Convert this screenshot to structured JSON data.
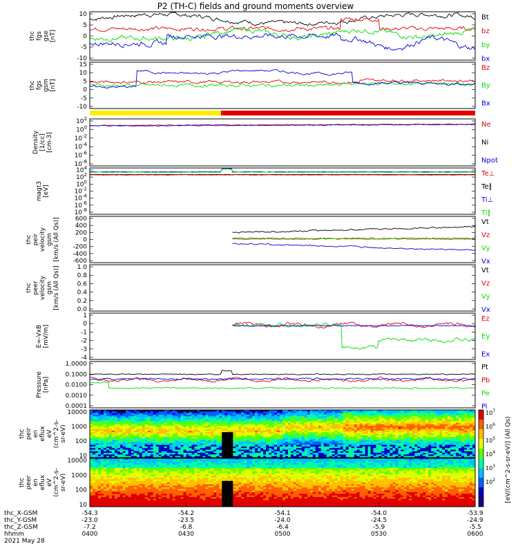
{
  "title": "P2 (TH-C) fields and ground moments overview",
  "colors": {
    "black": "#000000",
    "red": "#e00000",
    "green": "#00dd00",
    "blue": "#0000e0",
    "yellow": "#ffee00"
  },
  "mode_bar": {
    "segments": [
      {
        "start": "04:00",
        "end": "04:30",
        "color": "yellow"
      },
      {
        "start": "04:30",
        "end": "06:00",
        "color": "red"
      }
    ]
  },
  "chart_data": [
    {
      "id": "fgs_gse",
      "type": "line",
      "ylabel": "thc\nfgs\ngse\n[nT]",
      "yticks": [
        "10",
        "5",
        "0",
        "-5",
        "-10"
      ],
      "ylim": [
        -10,
        10
      ],
      "series": [
        {
          "name": "Bt",
          "color": "black"
        },
        {
          "name": "bz",
          "color": "red"
        },
        {
          "name": "by",
          "color": "green"
        },
        {
          "name": "bx",
          "color": "blue"
        }
      ]
    },
    {
      "id": "fgs_gsm",
      "type": "line",
      "ylabel": "thc\nfgs\ngsm\n[nT]",
      "yticks": [
        "15",
        "10",
        "5",
        "0",
        "-5",
        "-10"
      ],
      "ylim": [
        -13,
        15
      ],
      "series": [
        {
          "name": "Bz",
          "color": "red"
        },
        {
          "name": "By",
          "color": "green"
        },
        {
          "name": "Bx",
          "color": "blue"
        }
      ]
    },
    {
      "id": "density",
      "type": "line",
      "ylabel": "Density\n[1/cc]\n[cm-3]",
      "yticks": [
        "10^2",
        "10^0",
        "10^-2",
        "10^-4",
        "10^-6",
        "10^-8"
      ],
      "ylim": [
        -8,
        2
      ],
      "log": true,
      "series": [
        {
          "name": "Ne",
          "color": "red"
        },
        {
          "name": "Ni",
          "color": "black"
        },
        {
          "name": "Npot",
          "color": "blue"
        }
      ]
    },
    {
      "id": "temp",
      "type": "line",
      "ylabel": "magt3\n[eV]",
      "yticks": [
        "10^4",
        "10^2",
        "10^0",
        "10^-2",
        "10^-4",
        "10^-6",
        "10^-8"
      ],
      "ylim": [
        -8,
        4
      ],
      "log": true,
      "series": [
        {
          "name": "Te⊥",
          "color": "red"
        },
        {
          "name": "Te∥",
          "color": "black"
        },
        {
          "name": "Ti⊥",
          "color": "blue"
        },
        {
          "name": "Ti∥",
          "color": "green"
        }
      ]
    },
    {
      "id": "peir_vel",
      "type": "line",
      "ylabel": "thc\npeir\nvelocity\ngsm\n[km/s (All Qs)]",
      "yticks": [
        "600",
        "400",
        "200",
        "0",
        "-200",
        "-400",
        "-600"
      ],
      "ylim": [
        -600,
        600
      ],
      "series": [
        {
          "name": "Vt",
          "color": "black"
        },
        {
          "name": "Vz",
          "color": "red"
        },
        {
          "name": "Vy",
          "color": "green"
        },
        {
          "name": "Vx",
          "color": "blue"
        }
      ]
    },
    {
      "id": "peer_vel",
      "type": "line",
      "ylabel": "thc\npeer\nvelocity\ngsm\n[km/s (All Qs)]",
      "yticks": [
        "1.0",
        "0.8",
        "0.6",
        "0.4",
        "0.2",
        "0.0"
      ],
      "ylim": [
        0,
        1
      ],
      "series": [
        {
          "name": "Vt",
          "color": "black"
        },
        {
          "name": "Vz",
          "color": "red"
        },
        {
          "name": "Vy",
          "color": "green"
        },
        {
          "name": "Vx",
          "color": "blue"
        }
      ]
    },
    {
      "id": "efield",
      "type": "line",
      "ylabel": "E=-VxB\n[mV/m]",
      "yticks": [
        "1",
        "0",
        "-1",
        "-2",
        "-3",
        "-4"
      ],
      "ylim": [
        -4,
        1.5
      ],
      "series": [
        {
          "name": "Ez",
          "color": "red"
        },
        {
          "name": "Ey",
          "color": "green"
        },
        {
          "name": "Ex",
          "color": "blue"
        }
      ]
    },
    {
      "id": "pressure",
      "type": "line",
      "ylabel": "Pressure\n[nPa]",
      "yticks": [
        "1.0000",
        "0.1000",
        "0.0100",
        "0.0010",
        "0.0001"
      ],
      "ylim": [
        -4,
        0
      ],
      "log": true,
      "series": [
        {
          "name": "Pt",
          "color": "black"
        },
        {
          "name": "Pb",
          "color": "red"
        },
        {
          "name": "Pe",
          "color": "green"
        },
        {
          "name": "Pi",
          "color": "blue"
        }
      ]
    },
    {
      "id": "peir_en",
      "type": "heatmap",
      "ylabel": "thc\npeir\nen\neflux\neV\n(cm^2-s-\nsr-eV)",
      "yticks": [
        "10000",
        "1000",
        "100",
        "10"
      ]
    },
    {
      "id": "peer_en",
      "type": "heatmap",
      "ylabel": "thc\npeer\nen\neflux\neV\n(cm^2-s-\nsr-eV)",
      "yticks": [
        "10000",
        "1000",
        "100",
        "10"
      ]
    }
  ],
  "colorbar": {
    "label": "[eV/(cm^2-s-sr-eV)] (All Qs)",
    "ticks": [
      "10^7",
      "10^6",
      "10^5",
      "10^4",
      "10^3",
      "10^2"
    ]
  },
  "x_axis": {
    "rows": [
      {
        "label": "thc_X-GSM",
        "values": [
          "-54.3",
          "-54.2",
          "-54.1",
          "-54.0",
          "-53.9"
        ]
      },
      {
        "label": "thc_Y-GSM",
        "values": [
          "-23.0",
          "-23.5",
          "-24.0",
          "-24.5",
          "-24.9"
        ]
      },
      {
        "label": "thc_Z-GSM",
        "values": [
          "-7.2",
          "-6.8",
          "-6.4",
          "-5.9",
          "-5.5"
        ]
      },
      {
        "label": "hhmm",
        "values": [
          "0400",
          "0430",
          "0500",
          "0530",
          "0600"
        ]
      }
    ],
    "date": "2021 May 28"
  }
}
